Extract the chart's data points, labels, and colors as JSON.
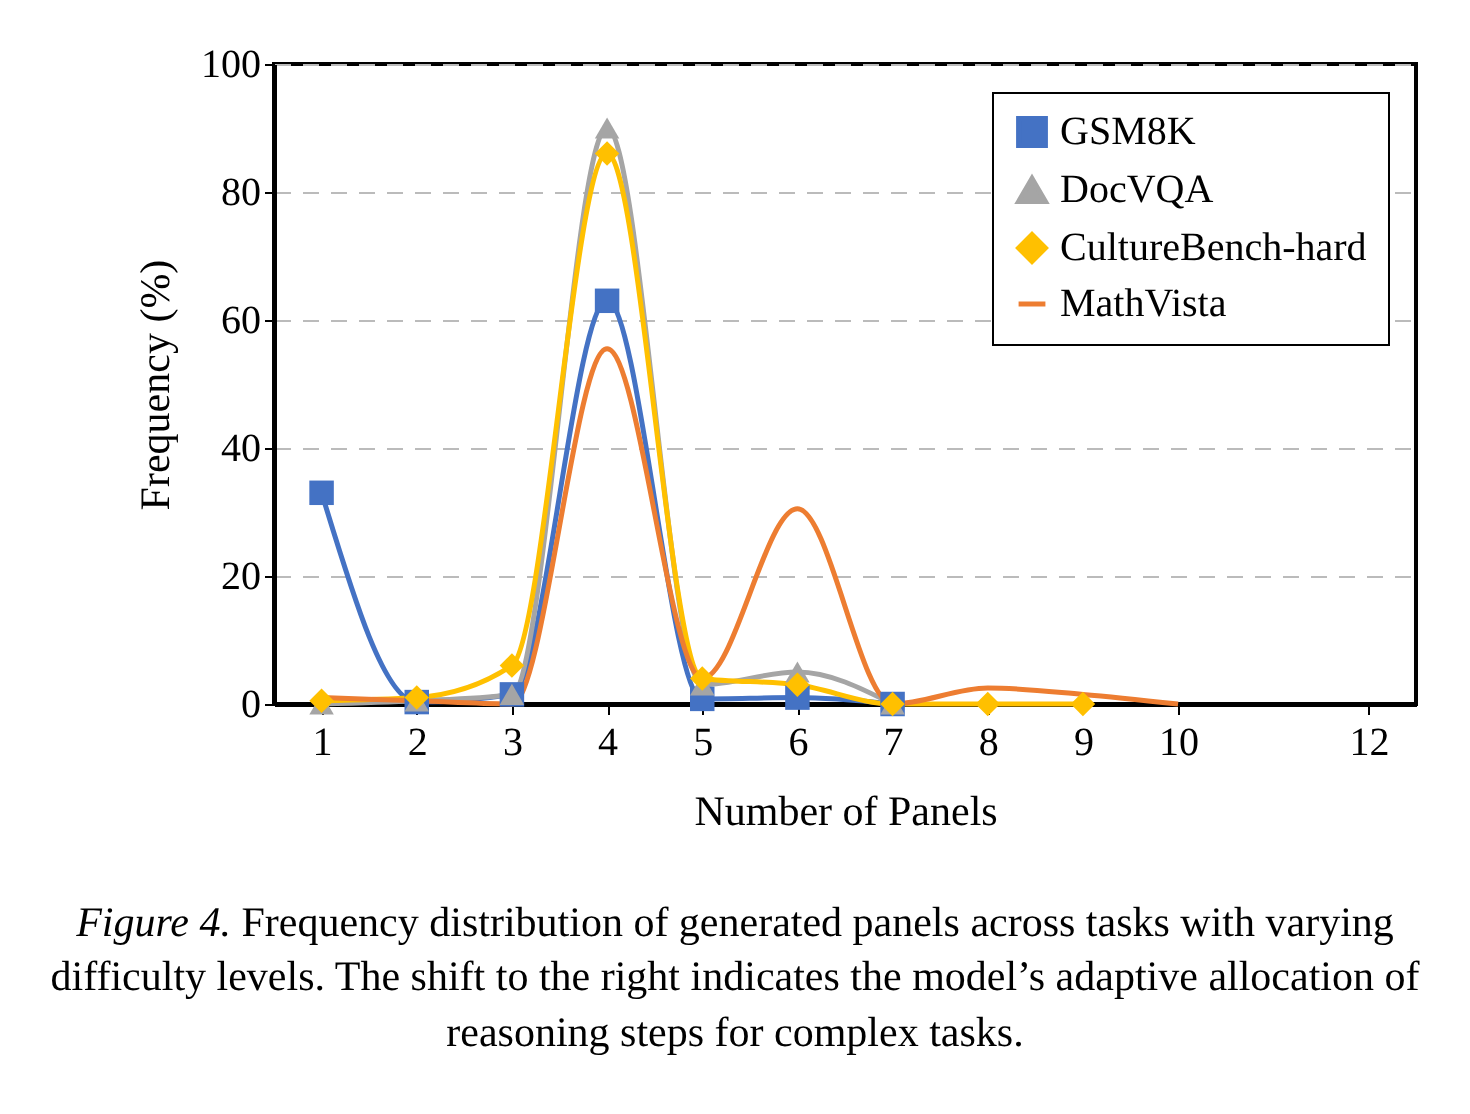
{
  "chart_data": {
    "type": "line",
    "xlabel": "Number of Panels",
    "ylabel": "Frequency (%)",
    "xlim": [
      0.5,
      12.5
    ],
    "xticks": [
      1,
      2,
      3,
      4,
      5,
      6,
      7,
      8,
      9,
      10,
      12
    ],
    "ylim": [
      0,
      100
    ],
    "yticks": [
      0,
      20,
      40,
      60,
      80,
      100
    ],
    "grid": "y",
    "legend": "top right",
    "line_style": "solid",
    "series": [
      {
        "name": "GSM8K",
        "color": "#4472c4",
        "marker": "square",
        "x": [
          1,
          2,
          3,
          4,
          5,
          6,
          7
        ],
        "values": [
          33,
          0.3,
          1.5,
          63,
          0.8,
          1,
          0
        ]
      },
      {
        "name": "DocVQA",
        "color": "#a5a5a5",
        "marker": "triangle",
        "x": [
          1,
          2,
          3,
          4,
          5,
          6,
          7
        ],
        "values": [
          0,
          0.5,
          1.5,
          90,
          3,
          5,
          0
        ]
      },
      {
        "name": "CultureBench-hard",
        "color": "#ffc000",
        "marker": "diamond",
        "x": [
          1,
          2,
          3,
          4,
          5,
          6,
          7,
          8,
          9
        ],
        "values": [
          0.5,
          1,
          6,
          86,
          4,
          3,
          0,
          0,
          0
        ]
      },
      {
        "name": "MathVista",
        "color": "#ed7d31",
        "marker": "none",
        "x": [
          1,
          2,
          3,
          4,
          5,
          6,
          7,
          8,
          9,
          10
        ],
        "values": [
          1,
          0.5,
          0,
          55.5,
          4,
          30.5,
          0,
          2.5,
          1.5,
          0
        ]
      }
    ],
    "annotations": [
      "Figure 4.",
      "Frequency distribution of generated panels across tasks with varying difficulty levels. The shift to the right indicates the model’s adaptive allocation of reasoning steps for complex tasks."
    ]
  }
}
